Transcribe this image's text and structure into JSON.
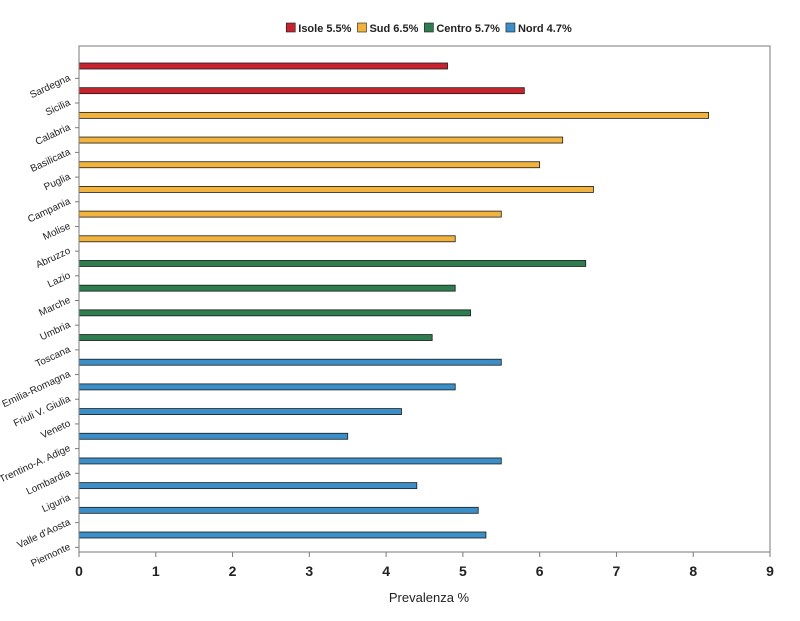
{
  "chart_data": {
    "type": "bar",
    "orientation": "horizontal",
    "xlabel": "Prevalenza %",
    "xlim": [
      0,
      9
    ],
    "xticks": [
      "0",
      "1",
      "2",
      "3",
      "4",
      "5",
      "6",
      "7",
      "8",
      "9"
    ],
    "grid": false,
    "legend_position": "top",
    "legend": [
      {
        "label": "Isole 5.5%",
        "color": "#c8232c"
      },
      {
        "label": "Sud 6.5%",
        "color": "#f2b33d"
      },
      {
        "label": "Centro 5.7%",
        "color": "#2e7d4f"
      },
      {
        "label": "Nord 4.7%",
        "color": "#3b8fc9"
      }
    ],
    "categories": [
      {
        "name": "Sardegna",
        "value": 4.8,
        "group": 0
      },
      {
        "name": "Sicilia",
        "value": 5.8,
        "group": 0
      },
      {
        "name": "Calabria",
        "value": 8.2,
        "group": 1
      },
      {
        "name": "Basilicata",
        "value": 6.3,
        "group": 1
      },
      {
        "name": "Puglia",
        "value": 6.0,
        "group": 1
      },
      {
        "name": "Campania",
        "value": 6.7,
        "group": 1
      },
      {
        "name": "Molise",
        "value": 5.5,
        "group": 1
      },
      {
        "name": "Abruzzo",
        "value": 4.9,
        "group": 1
      },
      {
        "name": "Lazio",
        "value": 6.6,
        "group": 2
      },
      {
        "name": "Marche",
        "value": 4.9,
        "group": 2
      },
      {
        "name": "Umbria",
        "value": 5.1,
        "group": 2
      },
      {
        "name": "Toscana",
        "value": 4.6,
        "group": 2
      },
      {
        "name": "Emilia-Romagna",
        "value": 5.5,
        "group": 3
      },
      {
        "name": "Friuli V. Giulia",
        "value": 4.9,
        "group": 3
      },
      {
        "name": "Veneto",
        "value": 4.2,
        "group": 3
      },
      {
        "name": "Trentino-A. Adige",
        "value": 3.5,
        "group": 3
      },
      {
        "name": "Lombardia",
        "value": 5.5,
        "group": 3
      },
      {
        "name": "Liguria",
        "value": 4.4,
        "group": 3
      },
      {
        "name": "Valle d'Aosta",
        "value": 5.2,
        "group": 3
      },
      {
        "name": "Piemonte",
        "value": 5.3,
        "group": 3
      }
    ]
  }
}
